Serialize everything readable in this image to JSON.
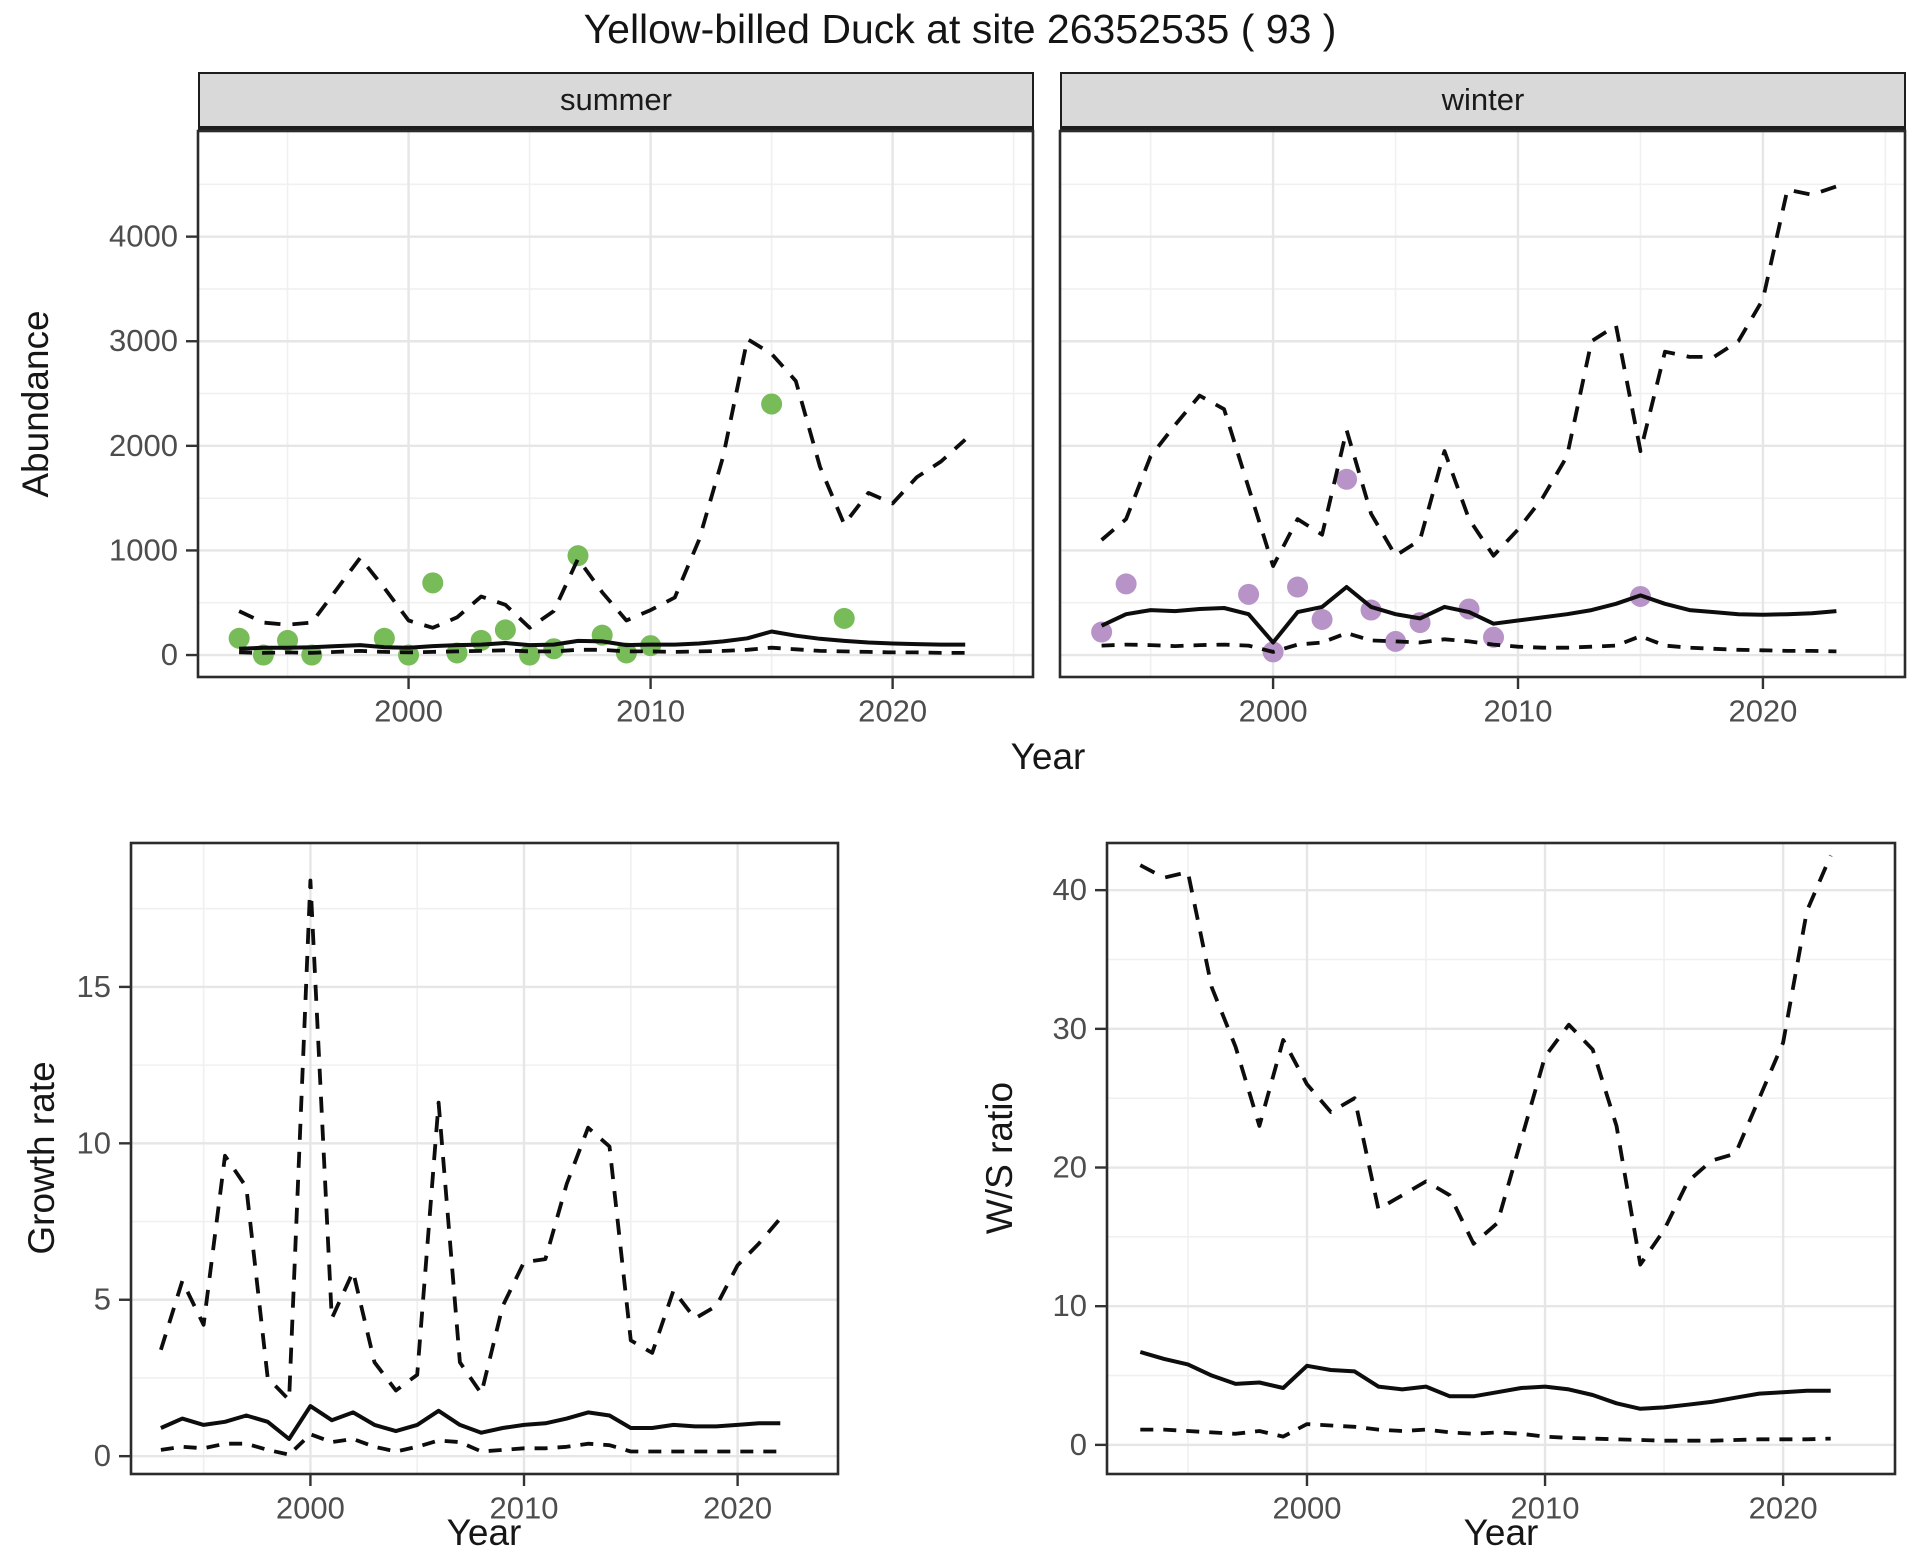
{
  "title": "Yellow-billed Duck at site 26352535 ( 93 )",
  "top": {
    "ylabel": "Abundance",
    "xlabel": "Year",
    "facets": [
      "summer",
      "winter"
    ]
  },
  "bottom_left": {
    "ylabel": "Growth rate",
    "xlabel": "Year"
  },
  "bottom_right": {
    "ylabel": "W/S ratio",
    "xlabel": "Year"
  },
  "colors": {
    "observed_summer": "#77BC59",
    "observed_winter": "#B793C7",
    "line": "#0D0D0D",
    "strip_bg": "#D9D9D9",
    "grid_major": "#E6E6E6",
    "grid_minor": "#F0F0F0",
    "tick_label": "#4D4D4D",
    "panel_border": "#2B2B2B"
  },
  "chart_data": [
    {
      "id": "abundance-summer",
      "type": "line",
      "facet_label": "summer",
      "xlabel": "Year",
      "ylabel": "Abundance",
      "x": [
        1993,
        1994,
        1995,
        1996,
        1997,
        1998,
        1999,
        2000,
        2001,
        2002,
        2003,
        2004,
        2005,
        2006,
        2007,
        2008,
        2009,
        2010,
        2011,
        2012,
        2013,
        2014,
        2015,
        2016,
        2017,
        2018,
        2019,
        2020,
        2021,
        2022,
        2023
      ],
      "series": [
        {
          "name": "fit",
          "style": "solid",
          "values": [
            60,
            70,
            70,
            75,
            85,
            95,
            75,
            70,
            85,
            95,
            100,
            115,
            95,
            100,
            135,
            130,
            95,
            100,
            100,
            110,
            130,
            160,
            225,
            185,
            155,
            135,
            120,
            110,
            105,
            100,
            100
          ]
        },
        {
          "name": "upper_CI",
          "style": "dashed",
          "values": [
            420,
            310,
            290,
            310,
            620,
            930,
            640,
            330,
            260,
            360,
            560,
            480,
            260,
            420,
            920,
            600,
            330,
            430,
            550,
            1100,
            1900,
            3020,
            2880,
            2620,
            1800,
            1250,
            1550,
            1450,
            1700,
            1850,
            2060
          ]
        },
        {
          "name": "lower_CI",
          "style": "dashed-short",
          "values": [
            25,
            20,
            25,
            20,
            30,
            40,
            30,
            25,
            30,
            35,
            40,
            45,
            35,
            35,
            50,
            50,
            35,
            35,
            30,
            35,
            40,
            50,
            70,
            55,
            40,
            35,
            30,
            25,
            25,
            20,
            20
          ]
        }
      ],
      "observed_points": {
        "name": "observed-count",
        "color_key": "observed_summer",
        "data": [
          [
            1993,
            160
          ],
          [
            1994,
            0
          ],
          [
            1995,
            140
          ],
          [
            1996,
            0
          ],
          [
            1999,
            160
          ],
          [
            2000,
            0
          ],
          [
            2001,
            690
          ],
          [
            2002,
            20
          ],
          [
            2003,
            140
          ],
          [
            2004,
            240
          ],
          [
            2005,
            0
          ],
          [
            2006,
            60
          ],
          [
            2007,
            950
          ],
          [
            2008,
            190
          ],
          [
            2009,
            20
          ],
          [
            2010,
            90
          ],
          [
            2015,
            2400
          ],
          [
            2018,
            350
          ]
        ]
      },
      "xlim": [
        1991.3,
        2025.8
      ],
      "ylim": [
        -210,
        5010
      ],
      "xticks": [
        2000,
        2010,
        2020
      ],
      "xminor": [
        1995,
        2005,
        2015,
        2025
      ],
      "yticks": [
        0,
        1000,
        2000,
        3000,
        4000
      ],
      "yminor": [
        500,
        1500,
        2500,
        3500,
        4500
      ],
      "grid": true,
      "legend": "none",
      "y_tick_labels": true
    },
    {
      "id": "abundance-winter",
      "type": "line",
      "facet_label": "winter",
      "xlabel": "Year",
      "ylabel": "Abundance",
      "x": [
        1993,
        1994,
        1995,
        1996,
        1997,
        1998,
        1999,
        2000,
        2001,
        2002,
        2003,
        2004,
        2005,
        2006,
        2007,
        2008,
        2009,
        2010,
        2011,
        2012,
        2013,
        2014,
        2015,
        2016,
        2017,
        2018,
        2019,
        2020,
        2021,
        2022,
        2023
      ],
      "series": [
        {
          "name": "fit",
          "style": "solid",
          "values": [
            280,
            390,
            430,
            420,
            440,
            450,
            390,
            120,
            410,
            460,
            650,
            460,
            390,
            350,
            460,
            410,
            300,
            330,
            360,
            390,
            430,
            490,
            570,
            490,
            430,
            410,
            390,
            385,
            390,
            400,
            420
          ]
        },
        {
          "name": "upper_CI",
          "style": "dashed",
          "values": [
            1100,
            1300,
            1900,
            2200,
            2480,
            2350,
            1600,
            850,
            1300,
            1150,
            2150,
            1350,
            950,
            1100,
            1950,
            1300,
            950,
            1200,
            1500,
            1900,
            3000,
            3150,
            1950,
            2900,
            2850,
            2850,
            3000,
            3400,
            4450,
            4400,
            4480
          ]
        },
        {
          "name": "lower_CI",
          "style": "dashed-short",
          "values": [
            90,
            100,
            95,
            85,
            95,
            100,
            90,
            30,
            100,
            120,
            210,
            140,
            130,
            120,
            150,
            130,
            100,
            80,
            70,
            70,
            80,
            90,
            180,
            90,
            70,
            60,
            50,
            45,
            40,
            40,
            35
          ]
        }
      ],
      "observed_points": {
        "name": "observed-count",
        "color_key": "observed_winter",
        "data": [
          [
            1993,
            220
          ],
          [
            1994,
            680
          ],
          [
            1999,
            580
          ],
          [
            2000,
            30
          ],
          [
            2001,
            650
          ],
          [
            2002,
            340
          ],
          [
            2003,
            1680
          ],
          [
            2004,
            430
          ],
          [
            2005,
            130
          ],
          [
            2006,
            310
          ],
          [
            2008,
            440
          ],
          [
            2009,
            170
          ],
          [
            2015,
            560
          ]
        ]
      },
      "xlim": [
        1991.3,
        2025.8
      ],
      "ylim": [
        -210,
        5010
      ],
      "xticks": [
        2000,
        2010,
        2020
      ],
      "xminor": [
        1995,
        2005,
        2015,
        2025
      ],
      "yticks": [
        0,
        1000,
        2000,
        3000,
        4000
      ],
      "yminor": [
        500,
        1500,
        2500,
        3500,
        4500
      ],
      "grid": true,
      "legend": "none",
      "y_tick_labels": false
    },
    {
      "id": "growth-rate",
      "type": "line",
      "facet_label": "",
      "xlabel": "Year",
      "ylabel": "Growth rate",
      "x": [
        1993,
        1994,
        1995,
        1996,
        1997,
        1998,
        1999,
        2000,
        2001,
        2002,
        2003,
        2004,
        2005,
        2006,
        2007,
        2008,
        2009,
        2010,
        2011,
        2012,
        2013,
        2014,
        2015,
        2016,
        2017,
        2018,
        2019,
        2020,
        2021,
        2022
      ],
      "series": [
        {
          "name": "fit",
          "style": "solid",
          "values": [
            0.9,
            1.2,
            1.0,
            1.1,
            1.3,
            1.1,
            0.55,
            1.6,
            1.15,
            1.4,
            1.0,
            0.8,
            1.0,
            1.45,
            1.0,
            0.75,
            0.9,
            1.0,
            1.05,
            1.2,
            1.4,
            1.3,
            0.9,
            0.9,
            1.0,
            0.95,
            0.95,
            1.0,
            1.05,
            1.05
          ]
        },
        {
          "name": "upper_CI",
          "style": "dashed",
          "values": [
            3.4,
            5.6,
            4.2,
            9.6,
            8.6,
            2.5,
            1.8,
            18.4,
            4.4,
            5.9,
            3.0,
            2.1,
            2.6,
            11.3,
            3.0,
            2.0,
            4.8,
            6.2,
            6.3,
            8.7,
            10.5,
            9.9,
            3.7,
            3.3,
            5.3,
            4.4,
            4.8,
            6.1,
            6.8,
            7.6
          ]
        },
        {
          "name": "lower_CI",
          "style": "dashed-short",
          "values": [
            0.2,
            0.3,
            0.25,
            0.4,
            0.4,
            0.2,
            0.05,
            0.7,
            0.45,
            0.55,
            0.3,
            0.15,
            0.3,
            0.5,
            0.45,
            0.15,
            0.2,
            0.25,
            0.25,
            0.3,
            0.4,
            0.35,
            0.15,
            0.15,
            0.15,
            0.15,
            0.15,
            0.15,
            0.15,
            0.15
          ]
        }
      ],
      "xlim": [
        1991.6,
        2024.7
      ],
      "ylim": [
        -0.57,
        19.6
      ],
      "xticks": [
        2000,
        2010,
        2020
      ],
      "xminor": [
        1995,
        2005,
        2015
      ],
      "yticks": [
        0,
        5,
        10,
        15
      ],
      "yminor": [
        2.5,
        7.5,
        12.5,
        17.5
      ],
      "grid": true,
      "legend": "none",
      "y_tick_labels": true
    },
    {
      "id": "ws-ratio",
      "type": "line",
      "facet_label": "",
      "xlabel": "Year",
      "ylabel": "W/S ratio",
      "x": [
        1993,
        1994,
        1995,
        1996,
        1997,
        1998,
        1999,
        2000,
        2001,
        2002,
        2003,
        2004,
        2005,
        2006,
        2007,
        2008,
        2009,
        2010,
        2011,
        2012,
        2013,
        2014,
        2015,
        2016,
        2017,
        2018,
        2019,
        2020,
        2021,
        2022
      ],
      "series": [
        {
          "name": "fit",
          "style": "solid",
          "values": [
            6.7,
            6.2,
            5.8,
            5.0,
            4.4,
            4.5,
            4.1,
            5.7,
            5.4,
            5.3,
            4.2,
            4.0,
            4.2,
            3.5,
            3.5,
            3.8,
            4.1,
            4.2,
            4.0,
            3.6,
            3.0,
            2.6,
            2.7,
            2.9,
            3.1,
            3.4,
            3.7,
            3.8,
            3.9,
            3.9
          ]
        },
        {
          "name": "upper_CI",
          "style": "dashed",
          "values": [
            41.8,
            40.9,
            41.3,
            33.0,
            28.7,
            23.0,
            29.2,
            26.0,
            24.0,
            25.0,
            17.0,
            18.0,
            19.0,
            18.0,
            14.5,
            16.0,
            22.0,
            28.0,
            30.3,
            28.5,
            23.0,
            13.0,
            15.5,
            19.0,
            20.5,
            21.0,
            25.0,
            29.0,
            38.5,
            42.5
          ]
        },
        {
          "name": "lower_CI",
          "style": "dashed-short",
          "values": [
            1.1,
            1.1,
            1.0,
            0.9,
            0.8,
            1.0,
            0.6,
            1.5,
            1.4,
            1.3,
            1.1,
            1.0,
            1.1,
            0.9,
            0.8,
            0.9,
            0.8,
            0.6,
            0.5,
            0.45,
            0.4,
            0.35,
            0.3,
            0.3,
            0.3,
            0.35,
            0.4,
            0.4,
            0.4,
            0.45
          ]
        }
      ],
      "xlim": [
        1991.6,
        2024.7
      ],
      "ylim": [
        -2.1,
        43.4
      ],
      "xticks": [
        2000,
        2010,
        2020
      ],
      "xminor": [
        1995,
        2005,
        2015
      ],
      "yticks": [
        0,
        10,
        20,
        30,
        40
      ],
      "yminor": [
        5,
        15,
        25,
        35
      ],
      "grid": true,
      "legend": "none",
      "y_tick_labels": true
    }
  ]
}
